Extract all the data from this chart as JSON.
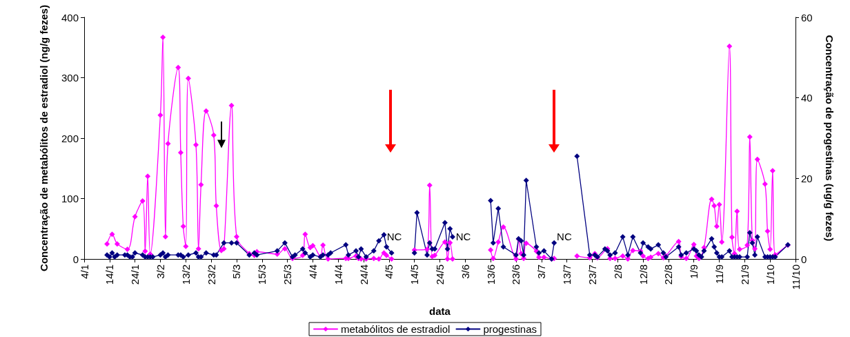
{
  "chart_data": {
    "type": "line",
    "xlabel": "data",
    "ylabel": "Concentração de metabólitos de estradiol (ng/g fezes)",
    "y2label": "Concentração de progestinas (ug/g fezes)",
    "xlim": [
      "--01-04",
      "--10-11"
    ],
    "xticks": [
      {
        "value": "--01-04",
        "label": "4/1"
      },
      {
        "value": "--01-14",
        "label": "14/1"
      },
      {
        "value": "--01-24",
        "label": "24/1"
      },
      {
        "value": "--02-03",
        "label": "3/2"
      },
      {
        "value": "--02-13",
        "label": "13/2"
      },
      {
        "value": "--02-23",
        "label": "23/2"
      },
      {
        "value": "--03-05",
        "label": "5/3"
      },
      {
        "value": "--03-15",
        "label": "15/3"
      },
      {
        "value": "--03-25",
        "label": "25/3"
      },
      {
        "value": "--04-04",
        "label": "4/4"
      },
      {
        "value": "--04-14",
        "label": "14/4"
      },
      {
        "value": "--04-24",
        "label": "24/4"
      },
      {
        "value": "--05-04",
        "label": "4/5"
      },
      {
        "value": "--05-14",
        "label": "14/5"
      },
      {
        "value": "--05-24",
        "label": "24/5"
      },
      {
        "value": "--06-03",
        "label": "3/6"
      },
      {
        "value": "--06-13",
        "label": "13/6"
      },
      {
        "value": "--06-23",
        "label": "23/6"
      },
      {
        "value": "--07-03",
        "label": "3/7"
      },
      {
        "value": "--07-13",
        "label": "13/7"
      },
      {
        "value": "--07-23",
        "label": "23/7"
      },
      {
        "value": "--08-02",
        "label": "2/8"
      },
      {
        "value": "--08-12",
        "label": "12/8"
      },
      {
        "value": "--08-22",
        "label": "22/8"
      },
      {
        "value": "--09-01",
        "label": "1/9"
      },
      {
        "value": "--09-11",
        "label": "11/9"
      },
      {
        "value": "--09-21",
        "label": "21/9"
      },
      {
        "value": "--10-01",
        "label": "1/10"
      },
      {
        "value": "--10-11",
        "label": "11/10"
      }
    ],
    "ylim": [
      0,
      400
    ],
    "yticks": [
      0,
      100,
      200,
      300,
      400
    ],
    "y2lim": [
      0,
      60
    ],
    "y2ticks": [
      0,
      20,
      40,
      60
    ],
    "grid": false,
    "legend": "bottom",
    "marker": "diamond",
    "line_style": "solid",
    "annotations": [
      "NC",
      "NC",
      "NC"
    ],
    "series": [
      {
        "name": "metabólitos de estradiol",
        "color": "#ff00ff",
        "x": [
          "--01-13",
          "--01-15",
          "--01-17",
          "--01-21",
          "--01-24",
          "--01-27",
          "--01-28",
          "--01-29",
          "--01-30",
          "--02-03",
          "--02-04",
          "--02-05",
          "--02-06",
          "--02-10",
          "--02-11",
          "--02-12",
          "--02-13",
          "--02-14",
          "--02-17",
          "--02-18",
          "--02-19",
          "--02-21",
          "--02-24",
          "--02-25",
          "--02-27",
          "--02-28",
          "--03-03",
          "--03-05",
          "--03-10",
          "--03-12",
          "--03-13",
          "--03-21",
          "--03-24",
          "--03-27",
          "--03-31",
          "--04-01",
          "--04-03",
          "--04-04",
          "--04-07",
          "--04-08",
          "--04-10",
          "--04-17",
          "--04-18",
          "--04-21",
          "--04-22",
          "--04-23",
          "--04-25",
          "--04-28",
          "--04-30",
          "--05-02",
          "--05-03",
          "--05-05",
          "--05-09",
          "--05-14",
          "--05-19",
          "--05-20",
          "--05-21",
          "--05-22",
          "--05-26",
          "--05-27",
          "--05-28",
          "--05-29",
          "--06-06",
          "--06-13",
          "--06-14",
          "--06-16",
          "--06-18",
          "--06-23",
          "--06-24",
          "--06-25",
          "--06-26",
          "--06-27",
          "--07-01",
          "--07-02",
          "--07-04",
          "--07-07",
          "--07-08",
          "--07-12",
          "--07-17",
          "--07-22",
          "--07-24",
          "--07-25",
          "--07-29",
          "--07-30",
          "--08-01",
          "--08-04",
          "--08-06",
          "--08-08",
          "--08-11",
          "--08-12",
          "--08-14",
          "--08-15",
          "--08-18",
          "--08-20",
          "--08-21",
          "--08-26",
          "--08-27",
          "--08-29",
          "--09-01",
          "--09-02",
          "--09-03",
          "--09-05",
          "--09-08",
          "--09-09",
          "--09-10",
          "--09-11",
          "--09-12",
          "--09-15",
          "--09-16",
          "--09-17",
          "--09-18",
          "--09-19",
          "--09-22",
          "--09-23",
          "--09-24",
          "--09-25",
          "--09-26",
          "--09-29",
          "--09-30",
          "--10-01",
          "--10-02",
          "--10-03",
          "--10-08"
        ],
        "values": [
          25,
          41,
          25,
          16,
          70,
          96,
          13,
          137,
          8,
          238,
          367,
          37,
          191,
          317,
          176,
          54,
          21,
          299,
          189,
          17,
          123,
          245,
          205,
          88,
          14,
          17,
          254,
          37,
          9,
          6,
          12,
          8,
          17,
          1,
          6,
          41,
          19,
          22,
          4,
          23,
          0,
          1,
          1,
          5,
          1,
          0,
          0,
          1,
          0,
          10,
          6,
          0,
          null,
          15,
          16,
          122,
          4,
          6,
          28,
          0,
          27,
          0,
          null,
          15,
          1,
          28,
          53,
          0,
          33,
          9,
          1,
          26,
          13,
          3,
          3,
          0,
          1,
          null,
          5,
          2,
          9,
          2,
          17,
          1,
          1,
          5,
          0,
          14,
          13,
          5,
          1,
          3,
          9,
          2,
          5,
          29,
          4,
          1,
          24,
          5,
          1,
          19,
          99,
          88,
          54,
          90,
          28,
          352,
          36,
          9,
          79,
          16,
          23,
          202,
          31,
          17,
          165,
          124,
          46,
          16,
          146,
          7,
          23
        ]
      },
      {
        "name": "progestinas",
        "color": "#000080",
        "axis": "y2",
        "x": [
          "--01-13",
          "--01-14",
          "--01-15",
          "--01-16",
          "--01-17",
          "--01-20",
          "--01-21",
          "--01-22",
          "--01-23",
          "--01-24",
          "--01-27",
          "--01-28",
          "--01-29",
          "--01-30",
          "--01-31",
          "--02-03",
          "--02-04",
          "--02-05",
          "--02-06",
          "--02-10",
          "--02-11",
          "--02-12",
          "--02-14",
          "--02-17",
          "--02-18",
          "--02-19",
          "--02-21",
          "--02-24",
          "--02-25",
          "--02-28",
          "--03-03",
          "--03-05",
          "--03-10",
          "--03-12",
          "--03-13",
          "--03-21",
          "--03-24",
          "--03-27",
          "--03-28",
          "--03-31",
          "--04-01",
          "--04-03",
          "--04-04",
          "--04-07",
          "--04-08",
          "--04-10",
          "--04-11",
          "--04-17",
          "--04-18",
          "--04-21",
          "--04-22",
          "--04-23",
          "--04-25",
          "--04-28",
          "--04-30",
          "--05-02",
          "--05-03",
          "--05-05",
          "--05-09",
          "--05-14",
          "--05-15",
          "--05-19",
          "--05-20",
          "--05-21",
          "--05-22",
          "--05-26",
          "--05-27",
          "--05-28",
          "--05-29",
          "--06-06",
          "--06-13",
          "--06-14",
          "--06-16",
          "--06-18",
          "--06-23",
          "--06-24",
          "--06-25",
          "--06-26",
          "--06-27",
          "--07-01",
          "--07-02",
          "--07-04",
          "--07-07",
          "--07-08",
          "--07-12",
          "--07-17",
          "--07-22",
          "--07-24",
          "--07-25",
          "--07-28",
          "--07-29",
          "--07-30",
          "--08-01",
          "--08-04",
          "--08-06",
          "--08-08",
          "--08-11",
          "--08-12",
          "--08-14",
          "--08-15",
          "--08-18",
          "--08-20",
          "--08-21",
          "--08-26",
          "--08-27",
          "--08-29",
          "--09-01",
          "--09-02",
          "--09-03",
          "--09-04",
          "--09-05",
          "--09-08",
          "--09-09",
          "--09-10",
          "--09-11",
          "--09-12",
          "--09-15",
          "--09-16",
          "--09-17",
          "--09-18",
          "--09-19",
          "--09-22",
          "--09-23",
          "--09-24",
          "--09-25",
          "--09-26",
          "--09-29",
          "--09-30",
          "--10-01",
          "--10-02",
          "--10-03",
          "--10-08"
        ],
        "values": [
          1,
          0.5,
          1.5,
          0.5,
          1,
          1,
          1,
          0.5,
          0.5,
          1.5,
          1,
          0.5,
          0.5,
          0.5,
          0.5,
          1,
          1.5,
          0.5,
          1,
          1,
          1,
          0.5,
          1,
          1.5,
          0.5,
          0.5,
          1.5,
          1,
          1,
          4,
          4,
          4,
          1,
          1.5,
          1,
          2,
          4,
          0.5,
          1,
          2.5,
          1.5,
          0.5,
          1,
          0.5,
          1,
          1,
          1.5,
          3.5,
          1,
          2,
          0.5,
          2.5,
          0.5,
          2,
          4.5,
          6,
          3,
          1.5,
          null,
          1.5,
          11.5,
          1,
          4,
          2.5,
          2.5,
          9,
          2.5,
          7.5,
          5.5,
          null,
          14.5,
          4,
          12.5,
          3,
          1,
          5,
          4.5,
          1,
          19.5,
          3,
          1.5,
          2,
          0,
          4,
          null,
          25.5,
          1,
          1,
          0.5,
          2.5,
          2,
          1,
          1.5,
          5.5,
          1,
          5.5,
          1.5,
          4,
          3,
          2.5,
          3.5,
          1.5,
          0.5,
          3,
          1,
          1.5,
          2.5,
          2,
          1,
          0.5,
          2,
          5,
          3,
          1.5,
          0.5,
          0.5,
          2,
          0.5,
          0.5,
          0.5,
          0.5,
          0.5,
          6.5,
          4,
          1,
          5.5,
          0.5,
          0.5,
          0.5,
          0.5,
          0.5,
          3.5
        ]
      }
    ]
  }
}
